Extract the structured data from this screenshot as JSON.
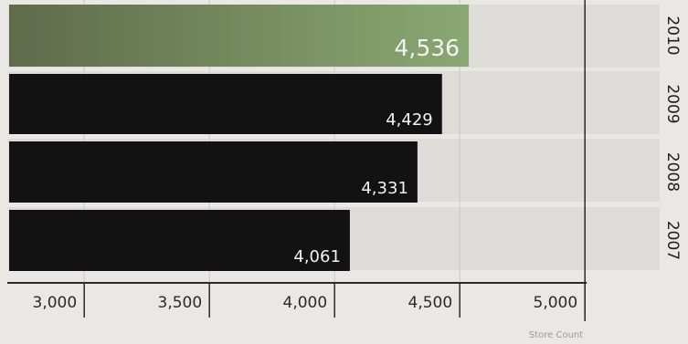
{
  "chart_data": {
    "type": "bar",
    "orientation": "horizontal",
    "categories": [
      "2010",
      "2009",
      "2008",
      "2007"
    ],
    "values": [
      4536,
      4429,
      4331,
      4061
    ],
    "value_labels": [
      "4,536",
      "4,429",
      "4,331",
      "4,061"
    ],
    "xlim": [
      2700,
      5000
    ],
    "x_ticks": [
      3000,
      3500,
      4000,
      4500,
      5000
    ],
    "x_tick_labels": [
      "3,000",
      "3,500",
      "4,000",
      "4,500",
      "5,000"
    ],
    "xlabel": "Store Count",
    "ylabel": "",
    "title": "",
    "grid": "vertical",
    "highlight_category": "2010",
    "colors": {
      "highlight_start": "#5f6b4b",
      "highlight_end": "#8aa873",
      "bar": "#121212",
      "gridline": "#c9c8c4",
      "axis": "#2a2a2a",
      "row_band": "#dedcd8"
    }
  }
}
